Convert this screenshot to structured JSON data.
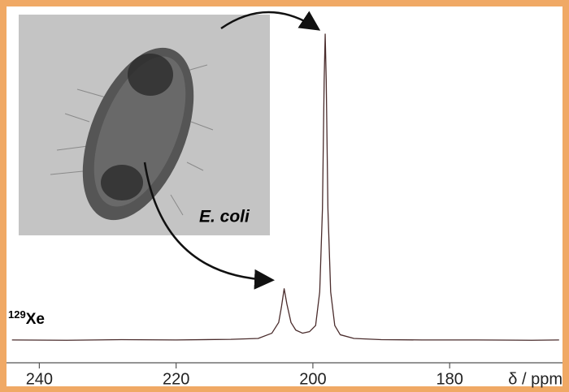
{
  "chart_data": {
    "type": "line",
    "xlabel": "δ / ppm",
    "nucleus_mass": "129",
    "nucleus": "Xe",
    "annotation": "E. coli",
    "xlim": [
      244.8,
      163.5
    ],
    "xticks": [
      240,
      220,
      200,
      180
    ],
    "ylim": [
      0,
      100
    ],
    "series": [
      {
        "color": "#4a2c2c",
        "x": [
          244,
          236,
          228,
          220,
          212,
          208,
          206,
          205,
          204.6,
          204.2,
          203.8,
          203.2,
          202.5,
          201.5,
          200.5,
          199.6,
          199.0,
          198.6,
          198.35,
          198.2,
          198.05,
          197.8,
          197.4,
          196.8,
          196,
          194,
          190,
          184,
          176,
          168,
          164
        ],
        "values": [
          0.3,
          0.2,
          0.4,
          0.3,
          0.5,
          0.8,
          2.5,
          6,
          11,
          17,
          12,
          6,
          3.5,
          2.5,
          3,
          5,
          16,
          43,
          85,
          100,
          85,
          43,
          16,
          5,
          2,
          0.8,
          0.4,
          0.3,
          0.3,
          0.2,
          0.3
        ]
      }
    ]
  }
}
